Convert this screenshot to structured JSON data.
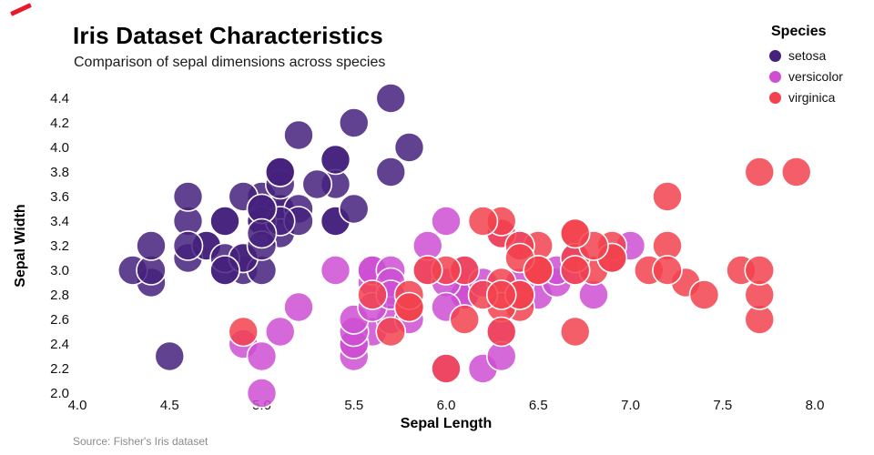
{
  "accent_color": "#e8192c",
  "header": {
    "title": "Iris Dataset Characteristics",
    "subtitle": "Comparison of sepal dimensions across species"
  },
  "legend": {
    "title": "Species",
    "items": [
      {
        "label": "setosa",
        "color": "#45217c"
      },
      {
        "label": "versicolor",
        "color": "#ce4fd2"
      },
      {
        "label": "virginica",
        "color": "#f2424e"
      }
    ]
  },
  "source": "Source: Fisher's Iris dataset",
  "chart_data": {
    "type": "scatter",
    "title": "Iris Dataset Characteristics",
    "subtitle": "Comparison of sepal dimensions across species",
    "xlabel": "Sepal Length",
    "ylabel": "Sepal Width",
    "xlim": [
      4.0,
      8.0
    ],
    "ylim": [
      2.0,
      4.4
    ],
    "x_ticks": [
      4.0,
      4.5,
      5.0,
      5.5,
      6.0,
      6.5,
      7.0,
      7.5,
      8.0
    ],
    "y_ticks": [
      2.0,
      2.2,
      2.4,
      2.6,
      2.8,
      3.0,
      3.2,
      3.4,
      3.6,
      3.8,
      4.0,
      4.2,
      4.4
    ],
    "grid": false,
    "legend_position": "top-right",
    "marker_radius": 16,
    "marker_opacity": 0.85,
    "series": [
      {
        "name": "setosa",
        "color": "#45217c",
        "points": [
          [
            5.1,
            3.5
          ],
          [
            4.9,
            3.0
          ],
          [
            4.7,
            3.2
          ],
          [
            4.6,
            3.1
          ],
          [
            5.0,
            3.6
          ],
          [
            5.4,
            3.9
          ],
          [
            4.6,
            3.4
          ],
          [
            5.0,
            3.4
          ],
          [
            4.4,
            2.9
          ],
          [
            4.9,
            3.1
          ],
          [
            5.4,
            3.7
          ],
          [
            4.8,
            3.4
          ],
          [
            4.8,
            3.0
          ],
          [
            4.3,
            3.0
          ],
          [
            5.8,
            4.0
          ],
          [
            5.7,
            4.4
          ],
          [
            5.4,
            3.9
          ],
          [
            5.1,
            3.5
          ],
          [
            5.7,
            3.8
          ],
          [
            5.1,
            3.8
          ],
          [
            5.4,
            3.4
          ],
          [
            5.1,
            3.7
          ],
          [
            4.6,
            3.6
          ],
          [
            5.1,
            3.3
          ],
          [
            4.8,
            3.4
          ],
          [
            5.0,
            3.0
          ],
          [
            5.0,
            3.4
          ],
          [
            5.2,
            3.5
          ],
          [
            5.2,
            3.4
          ],
          [
            4.7,
            3.2
          ],
          [
            4.8,
            3.1
          ],
          [
            5.4,
            3.4
          ],
          [
            5.2,
            4.1
          ],
          [
            5.5,
            4.2
          ],
          [
            4.9,
            3.1
          ],
          [
            5.0,
            3.2
          ],
          [
            5.5,
            3.5
          ],
          [
            4.9,
            3.6
          ],
          [
            4.4,
            3.0
          ],
          [
            5.1,
            3.4
          ],
          [
            5.0,
            3.5
          ],
          [
            4.5,
            2.3
          ],
          [
            4.4,
            3.2
          ],
          [
            5.0,
            3.5
          ],
          [
            5.1,
            3.8
          ],
          [
            4.8,
            3.0
          ],
          [
            5.1,
            3.8
          ],
          [
            4.6,
            3.2
          ],
          [
            5.3,
            3.7
          ],
          [
            5.0,
            3.3
          ]
        ]
      },
      {
        "name": "versicolor",
        "color": "#ce4fd2",
        "points": [
          [
            7.0,
            3.2
          ],
          [
            6.4,
            3.2
          ],
          [
            6.9,
            3.1
          ],
          [
            5.5,
            2.3
          ],
          [
            6.5,
            2.8
          ],
          [
            5.7,
            2.8
          ],
          [
            6.3,
            3.3
          ],
          [
            4.9,
            2.4
          ],
          [
            6.6,
            2.9
          ],
          [
            5.2,
            2.7
          ],
          [
            5.0,
            2.0
          ],
          [
            5.9,
            3.0
          ],
          [
            6.0,
            2.2
          ],
          [
            6.1,
            2.9
          ],
          [
            5.6,
            2.9
          ],
          [
            6.7,
            3.1
          ],
          [
            5.6,
            3.0
          ],
          [
            5.8,
            2.7
          ],
          [
            6.2,
            2.2
          ],
          [
            5.6,
            2.5
          ],
          [
            5.9,
            3.2
          ],
          [
            6.1,
            2.8
          ],
          [
            6.3,
            2.5
          ],
          [
            6.1,
            2.8
          ],
          [
            6.4,
            2.9
          ],
          [
            6.6,
            3.0
          ],
          [
            6.8,
            2.8
          ],
          [
            6.7,
            3.0
          ],
          [
            6.0,
            2.9
          ],
          [
            5.7,
            2.6
          ],
          [
            5.5,
            2.4
          ],
          [
            5.5,
            2.4
          ],
          [
            5.8,
            2.7
          ],
          [
            6.0,
            2.7
          ],
          [
            5.4,
            3.0
          ],
          [
            6.0,
            3.4
          ],
          [
            6.7,
            3.1
          ],
          [
            6.3,
            2.3
          ],
          [
            5.6,
            3.0
          ],
          [
            5.5,
            2.5
          ],
          [
            5.5,
            2.6
          ],
          [
            6.1,
            3.0
          ],
          [
            5.8,
            2.6
          ],
          [
            5.0,
            2.3
          ],
          [
            5.6,
            2.7
          ],
          [
            5.7,
            3.0
          ],
          [
            5.7,
            2.9
          ],
          [
            6.2,
            2.9
          ],
          [
            5.1,
            2.5
          ],
          [
            5.7,
            2.8
          ]
        ]
      },
      {
        "name": "virginica",
        "color": "#f2424e",
        "points": [
          [
            6.3,
            3.3
          ],
          [
            5.8,
            2.7
          ],
          [
            7.1,
            3.0
          ],
          [
            6.3,
            2.9
          ],
          [
            6.5,
            3.0
          ],
          [
            7.6,
            3.0
          ],
          [
            4.9,
            2.5
          ],
          [
            7.3,
            2.9
          ],
          [
            6.7,
            2.5
          ],
          [
            7.2,
            3.6
          ],
          [
            6.5,
            3.2
          ],
          [
            6.4,
            2.7
          ],
          [
            6.8,
            3.0
          ],
          [
            5.7,
            2.5
          ],
          [
            5.8,
            2.8
          ],
          [
            6.4,
            3.2
          ],
          [
            6.5,
            3.0
          ],
          [
            7.7,
            3.8
          ],
          [
            7.7,
            2.6
          ],
          [
            6.0,
            2.2
          ],
          [
            6.9,
            3.2
          ],
          [
            5.6,
            2.8
          ],
          [
            7.7,
            2.8
          ],
          [
            6.3,
            2.7
          ],
          [
            6.7,
            3.3
          ],
          [
            7.2,
            3.2
          ],
          [
            6.2,
            2.8
          ],
          [
            6.1,
            3.0
          ],
          [
            6.4,
            2.8
          ],
          [
            7.2,
            3.0
          ],
          [
            7.4,
            2.8
          ],
          [
            7.9,
            3.8
          ],
          [
            6.4,
            2.8
          ],
          [
            6.3,
            2.8
          ],
          [
            6.1,
            2.6
          ],
          [
            7.7,
            3.0
          ],
          [
            6.3,
            3.4
          ],
          [
            6.4,
            3.1
          ],
          [
            6.0,
            3.0
          ],
          [
            6.9,
            3.1
          ],
          [
            6.7,
            3.1
          ],
          [
            6.9,
            3.1
          ],
          [
            5.8,
            2.7
          ],
          [
            6.8,
            3.2
          ],
          [
            6.7,
            3.3
          ],
          [
            6.7,
            3.0
          ],
          [
            6.3,
            2.5
          ],
          [
            6.5,
            3.0
          ],
          [
            6.2,
            3.4
          ],
          [
            5.9,
            3.0
          ]
        ]
      }
    ]
  }
}
